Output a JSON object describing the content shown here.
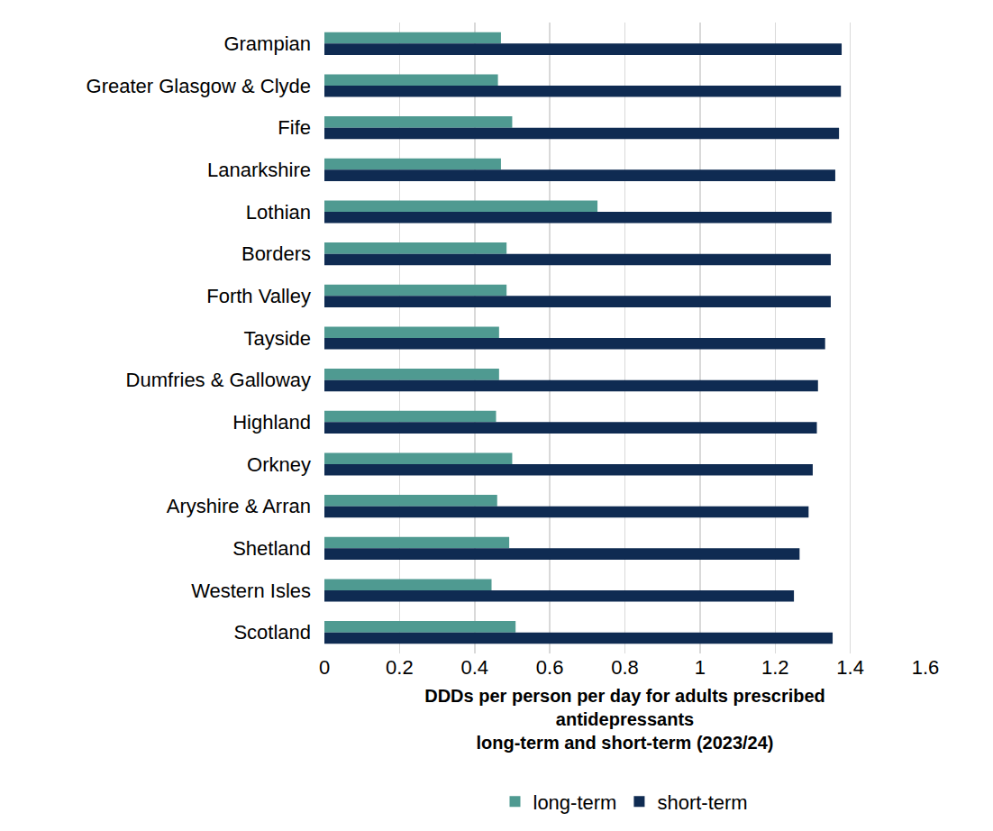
{
  "chart_data": {
    "type": "bar",
    "orientation": "horizontal",
    "xlabel": "DDDs per person per day for adults prescribed\nantidepressants\nlong-term and short-term (2023/24)",
    "categories": [
      "Grampian",
      "Greater Glasgow & Clyde",
      "Fife",
      "Lanarkshire",
      "Lothian",
      "Borders",
      "Forth Valley",
      "Tayside",
      "Dumfries & Galloway",
      "Highland",
      "Orkney",
      "Aryshire & Arran",
      "Shetland",
      "Western Isles",
      "Scotland"
    ],
    "series": [
      {
        "name": "long-term",
        "color": "#4f9a91",
        "values": [
          0.47,
          0.462,
          0.5,
          0.47,
          0.727,
          0.485,
          0.485,
          0.465,
          0.465,
          0.457,
          0.5,
          0.46,
          0.492,
          0.445,
          0.509
        ]
      },
      {
        "name": "short-term",
        "color": "#0f2b52",
        "values": [
          1.377,
          1.375,
          1.37,
          1.36,
          1.35,
          1.348,
          1.348,
          1.333,
          1.314,
          1.311,
          1.3,
          1.289,
          1.265,
          1.25,
          1.353
        ]
      }
    ],
    "xlim": [
      0,
      1.6
    ],
    "xticks": [
      0,
      0.2,
      0.4,
      0.6,
      0.8,
      1,
      1.2,
      1.4,
      1.6
    ],
    "grid": true,
    "legend": "bottom"
  }
}
